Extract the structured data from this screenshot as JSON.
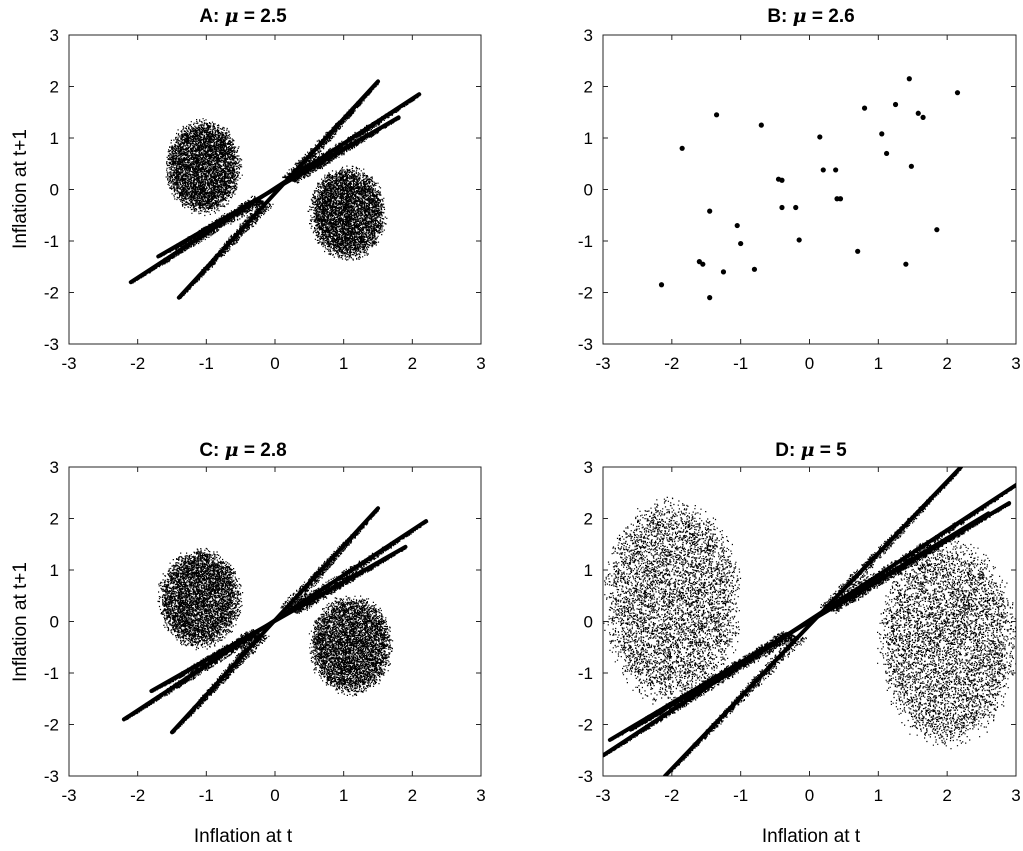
{
  "chart_data": [
    {
      "id": "A",
      "type": "scatter",
      "title_prefix": "A:",
      "title_symbol": "μ",
      "title_suffix": "= 2.5",
      "xlabel": "",
      "ylabel": "Inflation at t+1",
      "xlim": [
        -3,
        3
      ],
      "ylim": [
        -3,
        3
      ],
      "xticks": [
        "-3",
        "-2",
        "-1",
        "0",
        "1",
        "2",
        "3"
      ],
      "yticks": [
        "-3",
        "-2",
        "-1",
        "0",
        "1",
        "2",
        "3"
      ],
      "grid": false,
      "attractor": {
        "segments": [
          [
            [
              -2.1,
              -1.8
            ],
            [
              2.1,
              1.85
            ]
          ],
          [
            [
              -1.4,
              -2.1
            ],
            [
              1.5,
              2.1
            ]
          ],
          [
            [
              -1.7,
              -1.3
            ],
            [
              1.8,
              1.4
            ]
          ]
        ],
        "lobes": [
          {
            "center": [
              -1.05,
              0.45
            ],
            "radii": [
              0.55,
              0.95
            ]
          },
          {
            "center": [
              1.05,
              -0.45
            ],
            "radii": [
              0.55,
              0.95
            ]
          }
        ],
        "hole_center": [
          0.0,
          0.0
        ],
        "hole_radii": [
          0.35,
          0.25
        ]
      }
    },
    {
      "id": "B",
      "type": "scatter",
      "title_prefix": "B:",
      "title_symbol": "μ",
      "title_suffix": "= 2.6",
      "xlabel": "",
      "ylabel": "",
      "xlim": [
        -3,
        3
      ],
      "ylim": [
        -3,
        3
      ],
      "xticks": [
        "-3",
        "-2",
        "-1",
        "0",
        "1",
        "2",
        "3"
      ],
      "yticks": [
        "-3",
        "-2",
        "-1",
        "0",
        "1",
        "2",
        "3"
      ],
      "grid": false,
      "points": [
        [
          -2.15,
          -1.85
        ],
        [
          -1.85,
          0.8
        ],
        [
          -1.6,
          -1.4
        ],
        [
          -1.55,
          -1.45
        ],
        [
          -1.45,
          -0.42
        ],
        [
          -1.45,
          -2.1
        ],
        [
          -1.35,
          1.45
        ],
        [
          -1.25,
          -1.6
        ],
        [
          -1.05,
          -0.7
        ],
        [
          -1.0,
          -1.05
        ],
        [
          -0.8,
          -1.55
        ],
        [
          -0.7,
          1.25
        ],
        [
          -0.45,
          0.2
        ],
        [
          -0.4,
          0.18
        ],
        [
          -0.4,
          -0.35
        ],
        [
          -0.2,
          -0.35
        ],
        [
          -0.15,
          -0.98
        ],
        [
          0.15,
          1.02
        ],
        [
          0.2,
          0.38
        ],
        [
          0.38,
          0.38
        ],
        [
          0.4,
          -0.18
        ],
        [
          0.45,
          -0.18
        ],
        [
          0.7,
          -1.2
        ],
        [
          0.8,
          1.58
        ],
        [
          1.05,
          1.08
        ],
        [
          1.12,
          0.7
        ],
        [
          1.25,
          1.65
        ],
        [
          1.4,
          -1.45
        ],
        [
          1.45,
          2.15
        ],
        [
          1.48,
          0.45
        ],
        [
          1.58,
          1.48
        ],
        [
          1.65,
          1.4
        ],
        [
          1.85,
          -0.78
        ],
        [
          2.15,
          1.88
        ]
      ]
    },
    {
      "id": "C",
      "type": "scatter",
      "title_prefix": "C:",
      "title_symbol": "μ",
      "title_suffix": "= 2.8",
      "xlabel": "Inflation at t",
      "ylabel": "Inflation at t+1",
      "xlim": [
        -3,
        3
      ],
      "ylim": [
        -3,
        3
      ],
      "xticks": [
        "-3",
        "-2",
        "-1",
        "0",
        "1",
        "2",
        "3"
      ],
      "yticks": [
        "-3",
        "-2",
        "-1",
        "0",
        "1",
        "2",
        "3"
      ],
      "grid": false,
      "attractor": {
        "segments": [
          [
            [
              -2.2,
              -1.9
            ],
            [
              2.2,
              1.95
            ]
          ],
          [
            [
              -1.5,
              -2.15
            ],
            [
              1.5,
              2.2
            ]
          ],
          [
            [
              -1.8,
              -1.35
            ],
            [
              1.9,
              1.45
            ]
          ]
        ],
        "lobes": [
          {
            "center": [
              -1.1,
              0.45
            ],
            "radii": [
              0.6,
              1.0
            ]
          },
          {
            "center": [
              1.1,
              -0.45
            ],
            "radii": [
              0.6,
              1.0
            ]
          }
        ],
        "hole_center": [
          0.0,
          0.0
        ],
        "hole_radii": [
          0.38,
          0.28
        ]
      }
    },
    {
      "id": "D",
      "type": "scatter",
      "title_prefix": "D:",
      "title_symbol": "μ",
      "title_suffix": "= 5",
      "xlabel": "Inflation at t",
      "ylabel": "",
      "xlim": [
        -3,
        3
      ],
      "ylim": [
        -3,
        3
      ],
      "xticks": [
        "-3",
        "-2",
        "-1",
        "0",
        "1",
        "2",
        "3"
      ],
      "yticks": [
        "-3",
        "-2",
        "-1",
        "0",
        "1",
        "2",
        "3"
      ],
      "grid": false,
      "attractor": {
        "segments": [
          [
            [
              -3.0,
              -2.6
            ],
            [
              3.0,
              2.65
            ]
          ],
          [
            [
              -2.1,
              -3.0
            ],
            [
              2.2,
              3.0
            ]
          ],
          [
            [
              -2.6,
              -2.1
            ],
            [
              2.6,
              2.1
            ]
          ],
          [
            [
              -2.9,
              -2.3
            ],
            [
              2.9,
              2.3
            ]
          ]
        ],
        "lobes": [
          {
            "center": [
              -2.0,
              0.4
            ],
            "radii": [
              1.0,
              2.1
            ]
          },
          {
            "center": [
              2.0,
              -0.4
            ],
            "radii": [
              1.0,
              2.1
            ]
          }
        ],
        "hole_center": [
          0.0,
          0.0
        ],
        "hole_radii": [
          0.45,
          0.3
        ]
      }
    }
  ]
}
